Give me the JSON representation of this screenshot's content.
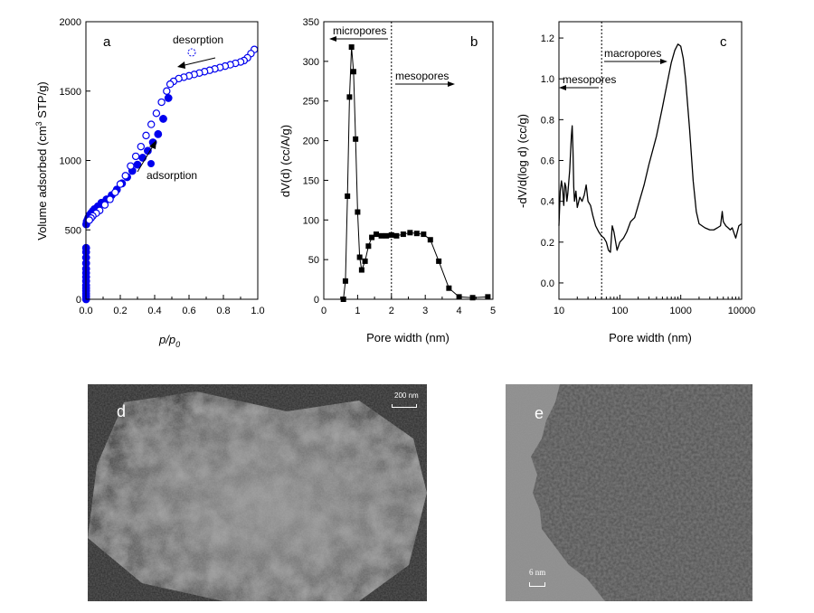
{
  "chart_data": [
    {
      "type": "scatter",
      "panel_label": "a",
      "xlabel_base": "p/p",
      "xlabel_sub": "0",
      "ylabel_pre": "Volume adsorbed (cm",
      "ylabel_sup": "3",
      "ylabel_post": " STP/g)",
      "xlim": [
        0,
        1.0
      ],
      "ylim": [
        0,
        2000
      ],
      "xticks": [
        "0.0",
        "0.2",
        "0.4",
        "0.6",
        "0.8",
        "1.0"
      ],
      "yticks": [
        "0",
        "500",
        "1000",
        "1500",
        "2000"
      ],
      "annotations": {
        "desorption": "desorption",
        "adsorption": "adsorption"
      },
      "marker_color": "#0000ee",
      "series": [
        {
          "name": "adsorption",
          "marker": "filled-circle",
          "x": [
            0.002,
            0.005,
            0.01,
            0.015,
            0.02,
            0.03,
            0.04,
            0.05,
            0.07,
            0.09,
            0.12,
            0.15,
            0.18,
            0.21,
            0.24,
            0.27,
            0.3,
            0.33,
            0.36,
            0.39,
            0.42,
            0.45,
            0.48
          ],
          "y": [
            540,
            560,
            575,
            590,
            605,
            620,
            635,
            650,
            670,
            695,
            720,
            750,
            790,
            835,
            880,
            925,
            970,
            1020,
            1070,
            1130,
            1190,
            1300,
            1450
          ]
        },
        {
          "name": "adsorption_low",
          "marker": "filled-circle",
          "x": [
            0.001,
            0.001,
            0.001,
            0.001,
            0.001,
            0.001,
            0.001,
            0.001,
            0.001,
            0.001,
            0.001,
            0.001,
            0.001,
            0.001
          ],
          "y": [
            0,
            20,
            40,
            60,
            80,
            100,
            130,
            160,
            190,
            220,
            260,
            300,
            340,
            370
          ]
        },
        {
          "name": "desorption",
          "marker": "open-circle",
          "x": [
            0.98,
            0.96,
            0.94,
            0.92,
            0.9,
            0.87,
            0.84,
            0.81,
            0.78,
            0.75,
            0.72,
            0.69,
            0.66,
            0.63,
            0.6,
            0.57,
            0.54,
            0.51,
            0.49,
            0.47,
            0.44,
            0.41,
            0.38,
            0.35,
            0.32,
            0.29,
            0.26,
            0.23,
            0.2,
            0.17,
            0.14,
            0.11,
            0.08,
            0.06,
            0.04,
            0.03,
            0.02
          ],
          "y": [
            1800,
            1770,
            1740,
            1720,
            1710,
            1700,
            1690,
            1680,
            1670,
            1660,
            1650,
            1640,
            1630,
            1620,
            1610,
            1600,
            1590,
            1570,
            1550,
            1500,
            1420,
            1340,
            1260,
            1180,
            1100,
            1030,
            960,
            890,
            830,
            770,
            720,
            680,
            640,
            620,
            600,
            585,
            570
          ]
        }
      ]
    },
    {
      "type": "line",
      "panel_label": "b",
      "xlabel": "Pore width (nm)",
      "ylabel": "dV(d) (cc/A/g)",
      "xlim": [
        0,
        5
      ],
      "ylim": [
        0,
        350
      ],
      "xticks": [
        "0",
        "1",
        "2",
        "3",
        "4",
        "5"
      ],
      "yticks": [
        "0",
        "50",
        "100",
        "150",
        "200",
        "250",
        "300",
        "350"
      ],
      "annotations": {
        "micropores": "micropores",
        "mesopores": "mesopores"
      },
      "divider_x": 2.0,
      "series": [
        {
          "name": "pore size distribution",
          "marker": "filled-square",
          "x": [
            0.58,
            0.64,
            0.7,
            0.76,
            0.82,
            0.88,
            0.94,
            1.0,
            1.06,
            1.12,
            1.22,
            1.32,
            1.42,
            1.55,
            1.7,
            1.85,
            2.0,
            2.15,
            2.35,
            2.55,
            2.75,
            2.95,
            3.15,
            3.4,
            3.7,
            4.0,
            4.4,
            4.85
          ],
          "y": [
            0,
            23,
            130,
            255,
            318,
            287,
            202,
            110,
            53,
            37,
            48,
            67,
            78,
            82,
            80,
            80,
            81,
            80,
            82,
            84,
            83,
            82,
            75,
            48,
            14,
            3,
            2,
            3
          ]
        }
      ]
    },
    {
      "type": "line",
      "panel_label": "c",
      "xlabel": "Pore width (nm)",
      "ylabel": "-dV/d(log d)  (cc/g)",
      "xscale": "log",
      "xlim": [
        10,
        10000
      ],
      "ylim": [
        -0.08,
        1.28
      ],
      "xticks": [
        "10",
        "100",
        "1000",
        "10000"
      ],
      "yticks": [
        "0.0",
        "0.2",
        "0.4",
        "0.6",
        "0.8",
        "1.0",
        "1.2"
      ],
      "annotations": {
        "macropores": "macropores",
        "mesopores": "mesopores"
      },
      "divider_x": 50,
      "series": [
        {
          "name": "pore size distribution",
          "x": [
            10,
            10.5,
            11,
            11.5,
            12,
            12.5,
            13,
            13.5,
            14,
            15,
            16,
            16.5,
            17,
            17.5,
            18,
            19,
            20,
            22,
            24,
            26,
            28,
            30,
            33,
            36,
            40,
            45,
            50,
            55,
            60,
            65,
            70,
            75,
            80,
            90,
            100,
            115,
            130,
            150,
            175,
            200,
            250,
            300,
            400,
            500,
            600,
            700,
            800,
            900,
            1000,
            1100,
            1200,
            1400,
            1600,
            1800,
            2000,
            2500,
            3000,
            3500,
            4000,
            4500,
            4800,
            5000,
            5500,
            6000,
            6500,
            7000,
            8000,
            9000,
            10000
          ],
          "y": [
            0.28,
            0.45,
            0.5,
            0.46,
            0.38,
            0.49,
            0.47,
            0.4,
            0.44,
            0.55,
            0.72,
            0.77,
            0.65,
            0.47,
            0.4,
            0.45,
            0.37,
            0.42,
            0.4,
            0.43,
            0.48,
            0.4,
            0.38,
            0.33,
            0.28,
            0.25,
            0.23,
            0.22,
            0.2,
            0.16,
            0.15,
            0.28,
            0.25,
            0.16,
            0.2,
            0.22,
            0.25,
            0.3,
            0.32,
            0.38,
            0.48,
            0.58,
            0.72,
            0.86,
            0.98,
            1.08,
            1.14,
            1.17,
            1.16,
            1.1,
            1.0,
            0.75,
            0.5,
            0.35,
            0.29,
            0.27,
            0.26,
            0.26,
            0.27,
            0.28,
            0.35,
            0.3,
            0.28,
            0.27,
            0.26,
            0.27,
            0.22,
            0.28,
            0.29
          ]
        }
      ]
    }
  ],
  "micrographs": {
    "d": {
      "label": "d",
      "scale_bar": "200 nm"
    },
    "e": {
      "label": "e",
      "scale_bar": "6 nm"
    }
  }
}
